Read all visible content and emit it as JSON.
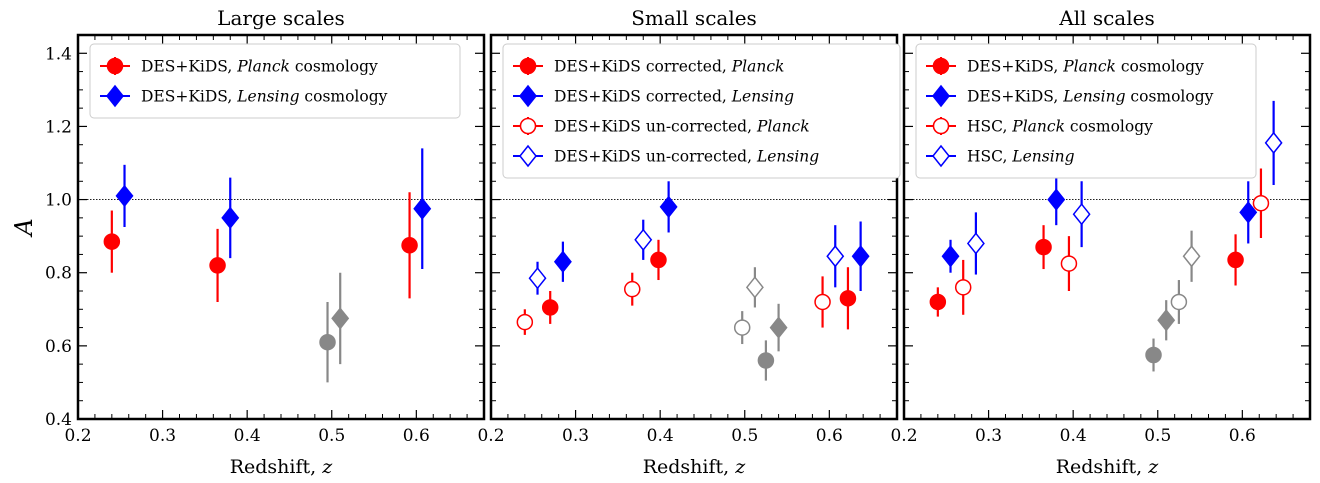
{
  "ylabel": "A",
  "x_ticks": [
    0.2,
    0.3,
    0.4,
    0.5,
    0.6
  ],
  "y_ticks": [
    0.4,
    0.6,
    0.8,
    1.0,
    1.2,
    1.4
  ],
  "x_tick_labels": [
    "0.2",
    "0.3",
    "0.4",
    "0.5",
    "0.6"
  ],
  "y_tick_labels": [
    "0.4",
    "0.6",
    "0.8",
    "1.0",
    "1.2",
    "1.4"
  ],
  "colors": {
    "planck": "#ff0000",
    "lensing": "#0000ff",
    "grey": "#888888"
  },
  "chart_data": [
    {
      "type": "scatter",
      "title": "Large scales",
      "xlabel": "Redshift, ",
      "xlabel_var": "z",
      "xlim": [
        0.2,
        0.68
      ],
      "ylim": [
        0.4,
        1.45
      ],
      "reference_line": 1.0,
      "legend_position": "top-left",
      "series": [
        {
          "name": "DES+KiDS, ",
          "name_italic": "Planck",
          "name_suffix": " cosmology",
          "color": "planck",
          "marker": "circle",
          "filled": true,
          "points": [
            {
              "x": 0.24,
              "y": 0.885,
              "err": 0.085
            },
            {
              "x": 0.365,
              "y": 0.82,
              "err": 0.1
            },
            {
              "x": 0.495,
              "y": 0.61,
              "err": 0.11,
              "grey": true
            },
            {
              "x": 0.592,
              "y": 0.875,
              "err": 0.145
            }
          ]
        },
        {
          "name": "DES+KiDS, ",
          "name_italic": "Lensing",
          "name_suffix": " cosmology",
          "color": "lensing",
          "marker": "diamond",
          "filled": true,
          "points": [
            {
              "x": 0.255,
              "y": 1.01,
              "err": 0.085
            },
            {
              "x": 0.38,
              "y": 0.95,
              "err": 0.11
            },
            {
              "x": 0.51,
              "y": 0.675,
              "err": 0.125,
              "grey": true
            },
            {
              "x": 0.607,
              "y": 0.975,
              "err": 0.165
            }
          ]
        }
      ]
    },
    {
      "type": "scatter",
      "title": "Small scales",
      "xlabel": "Redshift, ",
      "xlabel_var": "z",
      "xlim": [
        0.2,
        0.68
      ],
      "ylim": [
        0.4,
        1.45
      ],
      "reference_line": 1.0,
      "legend_position": "top-left",
      "series": [
        {
          "name": "DES+KiDS corrected, ",
          "name_italic": "Planck",
          "name_suffix": "",
          "color": "planck",
          "marker": "circle",
          "filled": true,
          "points": [
            {
              "x": 0.27,
              "y": 0.705,
              "err": 0.045
            },
            {
              "x": 0.398,
              "y": 0.835,
              "err": 0.055
            },
            {
              "x": 0.525,
              "y": 0.56,
              "err": 0.055,
              "grey": true
            },
            {
              "x": 0.622,
              "y": 0.73,
              "err": 0.085
            }
          ]
        },
        {
          "name": "DES+KiDS corrected, ",
          "name_italic": "Lensing",
          "name_suffix": "",
          "color": "lensing",
          "marker": "diamond",
          "filled": true,
          "points": [
            {
              "x": 0.285,
              "y": 0.83,
              "err": 0.055
            },
            {
              "x": 0.41,
              "y": 0.98,
              "err": 0.07
            },
            {
              "x": 0.54,
              "y": 0.65,
              "err": 0.065,
              "grey": true
            },
            {
              "x": 0.637,
              "y": 0.845,
              "err": 0.095
            }
          ]
        },
        {
          "name": "DES+KiDS un-corrected, ",
          "name_italic": "Planck",
          "name_suffix": "",
          "color": "planck",
          "marker": "circle",
          "filled": false,
          "points": [
            {
              "x": 0.24,
              "y": 0.665,
              "err": 0.035
            },
            {
              "x": 0.367,
              "y": 0.755,
              "err": 0.045
            },
            {
              "x": 0.497,
              "y": 0.65,
              "err": 0.045,
              "grey": true
            },
            {
              "x": 0.592,
              "y": 0.72,
              "err": 0.07
            }
          ]
        },
        {
          "name": "DES+KiDS un-corrected, ",
          "name_italic": "Lensing",
          "name_suffix": "",
          "color": "lensing",
          "marker": "diamond",
          "filled": false,
          "points": [
            {
              "x": 0.255,
              "y": 0.785,
              "err": 0.045
            },
            {
              "x": 0.38,
              "y": 0.89,
              "err": 0.055
            },
            {
              "x": 0.512,
              "y": 0.76,
              "err": 0.055,
              "grey": true
            },
            {
              "x": 0.607,
              "y": 0.845,
              "err": 0.085
            }
          ]
        }
      ]
    },
    {
      "type": "scatter",
      "title": "All scales",
      "xlabel": "Redshift, ",
      "xlabel_var": "z",
      "xlim": [
        0.2,
        0.68
      ],
      "ylim": [
        0.4,
        1.45
      ],
      "reference_line": 1.0,
      "legend_position": "top-left",
      "series": [
        {
          "name": "DES+KiDS, ",
          "name_italic": "Planck",
          "name_suffix": " cosmology",
          "color": "planck",
          "marker": "circle",
          "filled": true,
          "points": [
            {
              "x": 0.24,
              "y": 0.72,
              "err": 0.04
            },
            {
              "x": 0.365,
              "y": 0.87,
              "err": 0.06
            },
            {
              "x": 0.495,
              "y": 0.575,
              "err": 0.045,
              "grey": true
            },
            {
              "x": 0.592,
              "y": 0.835,
              "err": 0.07
            }
          ]
        },
        {
          "name": "DES+KiDS, ",
          "name_italic": "Lensing",
          "name_suffix": " cosmology",
          "color": "lensing",
          "marker": "diamond",
          "filled": true,
          "points": [
            {
              "x": 0.255,
              "y": 0.845,
              "err": 0.045
            },
            {
              "x": 0.38,
              "y": 1.0,
              "err": 0.07
            },
            {
              "x": 0.51,
              "y": 0.67,
              "err": 0.055,
              "grey": true
            },
            {
              "x": 0.607,
              "y": 0.965,
              "err": 0.085
            }
          ]
        },
        {
          "name": "HSC, ",
          "name_italic": "Planck",
          "name_suffix": " cosmology",
          "color": "planck",
          "marker": "circle",
          "filled": false,
          "points": [
            {
              "x": 0.27,
              "y": 0.76,
              "err": 0.075
            },
            {
              "x": 0.395,
              "y": 0.825,
              "err": 0.075
            },
            {
              "x": 0.525,
              "y": 0.72,
              "err": 0.06,
              "grey": true
            },
            {
              "x": 0.622,
              "y": 0.99,
              "err": 0.095
            }
          ]
        },
        {
          "name": "HSC, ",
          "name_italic": "Lensing",
          "name_suffix": "",
          "color": "lensing",
          "marker": "diamond",
          "filled": false,
          "points": [
            {
              "x": 0.285,
              "y": 0.88,
              "err": 0.085
            },
            {
              "x": 0.41,
              "y": 0.96,
              "err": 0.09
            },
            {
              "x": 0.54,
              "y": 0.845,
              "err": 0.07,
              "grey": true
            },
            {
              "x": 0.637,
              "y": 1.155,
              "err": 0.115
            }
          ]
        }
      ]
    }
  ]
}
